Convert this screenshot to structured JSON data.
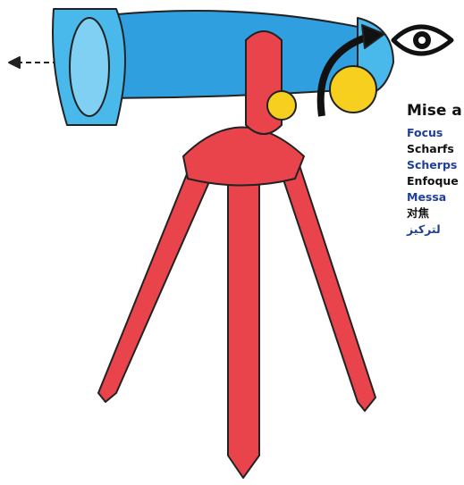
{
  "heading": "Mise a",
  "labels": [
    {
      "text": "Focus",
      "color": "#1f3f99"
    },
    {
      "text": "Scharfs",
      "color": "#111111"
    },
    {
      "text": "Scherps",
      "color": "#1f3f99"
    },
    {
      "text": "Enfoque",
      "color": "#111111"
    },
    {
      "text": "Messa",
      "color": "#1f3f99"
    },
    {
      "text": "对焦",
      "color": "#111111"
    },
    {
      "text": "لتركيز",
      "color": "#1f3f99"
    }
  ]
}
